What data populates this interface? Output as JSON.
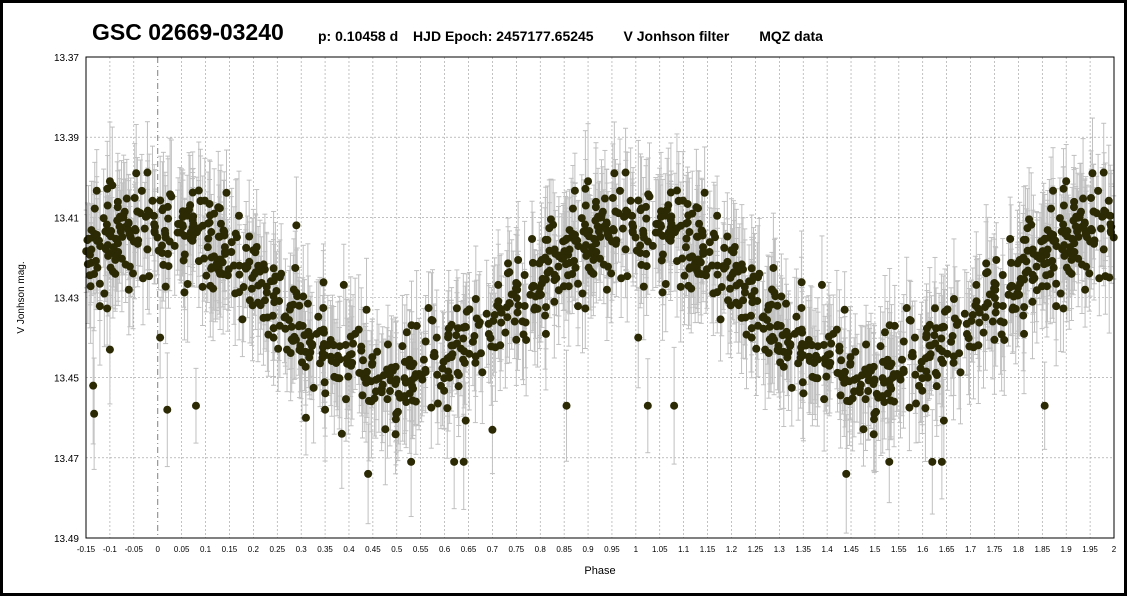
{
  "header": {
    "star": "GSC 02669-03240",
    "period": "p: 0.10458 d",
    "epoch": "HJD Epoch: 2457177.65245",
    "filter": "V Jonhson  filter",
    "source": "MQZ data"
  },
  "colors": {
    "points": "#2b2a04",
    "error_bars": "#c0c0c0",
    "grid": "#9a9a9a",
    "zero_line": "#808080",
    "frame": "#000000"
  },
  "chart_data": {
    "type": "scatter",
    "xlabel": "Phase",
    "ylabel": "V Jonhson mag.",
    "xlim": [
      -0.15,
      2.0
    ],
    "ylim": [
      13.37,
      13.49
    ],
    "y_inverted": true,
    "grid": true,
    "error_bars": true,
    "typical_error": 0.012,
    "x_ticks": [
      "-0.15",
      "-0.1",
      "-0.05",
      "0",
      "0.05",
      "0.1",
      "0.15",
      "0.2",
      "0.25",
      "0.3",
      "0.35",
      "0.4",
      "0.45",
      "0.5",
      "0.55",
      "0.6",
      "0.65",
      "0.7",
      "0.75",
      "0.8",
      "0.85",
      "0.9",
      "0.95",
      "1",
      "1.05",
      "1.1",
      "1.15",
      "1.2",
      "1.25",
      "1.3",
      "1.35",
      "1.4",
      "1.45",
      "1.5",
      "1.55",
      "1.6",
      "1.65",
      "1.7",
      "1.75",
      "1.8",
      "1.85",
      "1.9",
      "1.95",
      "2"
    ],
    "y_ticks": [
      "13.37",
      "13.39",
      "13.41",
      "13.43",
      "13.45",
      "13.47",
      "13.49"
    ],
    "light_curve_model": {
      "mean_mag": 13.431,
      "amplitude": 0.019,
      "max_light_phase": 0.0,
      "scatter_sd": 0.006
    },
    "series": [
      {
        "values": [
          {
            "x": -0.135,
            "y": 13.452
          },
          {
            "x": -0.133,
            "y": 13.459
          },
          {
            "x": -0.1,
            "y": 13.401
          },
          {
            "x": -0.095,
            "y": 13.402
          },
          {
            "x": -0.045,
            "y": 13.399
          },
          {
            "x": -0.1,
            "y": 13.443
          },
          {
            "x": 0.005,
            "y": 13.44
          },
          {
            "x": 0.02,
            "y": 13.458
          },
          {
            "x": 0.08,
            "y": 13.457
          },
          {
            "x": 0.29,
            "y": 13.412
          },
          {
            "x": 0.31,
            "y": 13.46
          },
          {
            "x": 0.35,
            "y": 13.458
          },
          {
            "x": 0.385,
            "y": 13.464
          },
          {
            "x": 0.44,
            "y": 13.474
          },
          {
            "x": 0.53,
            "y": 13.471
          },
          {
            "x": 0.62,
            "y": 13.471
          },
          {
            "x": 0.64,
            "y": 13.471
          },
          {
            "x": 0.7,
            "y": 13.463
          },
          {
            "x": 0.855,
            "y": 13.457
          },
          {
            "x": 0.9,
            "y": 13.401
          },
          {
            "x": 0.955,
            "y": 13.399
          },
          {
            "x": 1.005,
            "y": 13.44
          },
          {
            "x": 1.025,
            "y": 13.457
          },
          {
            "x": 1.08,
            "y": 13.457
          },
          {
            "x": 1.44,
            "y": 13.474
          },
          {
            "x": 1.53,
            "y": 13.471
          },
          {
            "x": 1.62,
            "y": 13.471
          },
          {
            "x": 1.64,
            "y": 13.471
          },
          {
            "x": 1.855,
            "y": 13.457
          },
          {
            "x": 1.9,
            "y": 13.401
          },
          {
            "x": 1.955,
            "y": 13.399
          },
          {
            "x": 1.99,
            "y": 13.425
          }
        ]
      }
    ]
  }
}
